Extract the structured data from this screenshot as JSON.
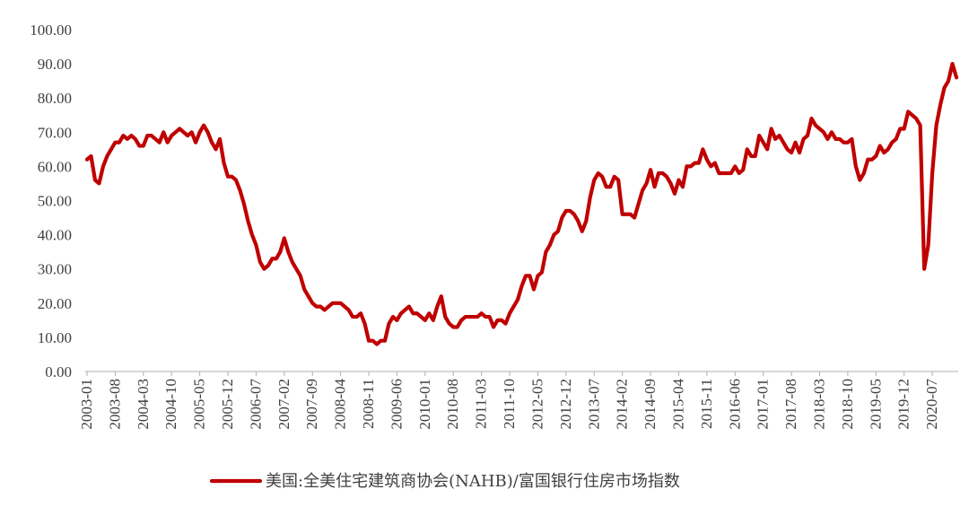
{
  "chart_data": {
    "type": "line",
    "title": "",
    "xlabel": "",
    "ylabel": "",
    "ylim": [
      0,
      100
    ],
    "yticks": [
      "0.00",
      "10.00",
      "20.00",
      "30.00",
      "40.00",
      "50.00",
      "60.00",
      "70.00",
      "80.00",
      "90.00",
      "100.00"
    ],
    "xticks": [
      "2003-01",
      "2003-08",
      "2004-03",
      "2004-10",
      "2005-05",
      "2005-12",
      "2006-07",
      "2007-02",
      "2007-09",
      "2008-04",
      "2008-11",
      "2009-06",
      "2010-01",
      "2010-08",
      "2011-03",
      "2011-10",
      "2012-05",
      "2012-12",
      "2013-07",
      "2014-02",
      "2014-09",
      "2015-04",
      "2015-11",
      "2016-06",
      "2017-01",
      "2017-08",
      "2018-03",
      "2018-10",
      "2019-05",
      "2019-12",
      "2020-07"
    ],
    "grid": false,
    "legend_position": "bottom",
    "line_color": "#C00000",
    "series": [
      {
        "name": "美国:全美住宅建筑商协会(NAHB)/富国银行住房市场指数",
        "start": "2003-01",
        "frequency": "monthly",
        "values": [
          62,
          63,
          56,
          55,
          60,
          63,
          65,
          67,
          67,
          69,
          68,
          69,
          68,
          66,
          66,
          69,
          69,
          68,
          67,
          70,
          67,
          69,
          70,
          71,
          70,
          69,
          70,
          67,
          70,
          72,
          70,
          67,
          65,
          68,
          61,
          57,
          57,
          56,
          53,
          49,
          44,
          40,
          37,
          32,
          30,
          31,
          33,
          33,
          35,
          39,
          35,
          32,
          30,
          28,
          24,
          22,
          20,
          19,
          19,
          18,
          19,
          20,
          20,
          20,
          19,
          18,
          16,
          16,
          17,
          14,
          9,
          9,
          8,
          9,
          9,
          14,
          16,
          15,
          17,
          18,
          19,
          17,
          17,
          16,
          15,
          17,
          15,
          19,
          22,
          16,
          14,
          13,
          13,
          15,
          16,
          16,
          16,
          16,
          17,
          16,
          16,
          13,
          15,
          15,
          14,
          17,
          19,
          21,
          25,
          28,
          28,
          24,
          28,
          29,
          35,
          37,
          40,
          41,
          45,
          47,
          47,
          46,
          44,
          41,
          44,
          51,
          56,
          58,
          57,
          54,
          54,
          57,
          56,
          46,
          46,
          46,
          45,
          49,
          53,
          55,
          59,
          54,
          58,
          58,
          57,
          55,
          52,
          56,
          54,
          60,
          60,
          61,
          61,
          65,
          62,
          60,
          61,
          58,
          58,
          58,
          58,
          60,
          58,
          59,
          65,
          63,
          63,
          69,
          67,
          65,
          71,
          68,
          69,
          67,
          65,
          64,
          67,
          64,
          68,
          69,
          74,
          72,
          71,
          70,
          68,
          70,
          68,
          68,
          67,
          67,
          68,
          60,
          56,
          58,
          62,
          62,
          63,
          66,
          64,
          65,
          67,
          68,
          71,
          71,
          76,
          75,
          74,
          72,
          30,
          37,
          58,
          72,
          78,
          83,
          85,
          90,
          86
        ]
      }
    ]
  }
}
